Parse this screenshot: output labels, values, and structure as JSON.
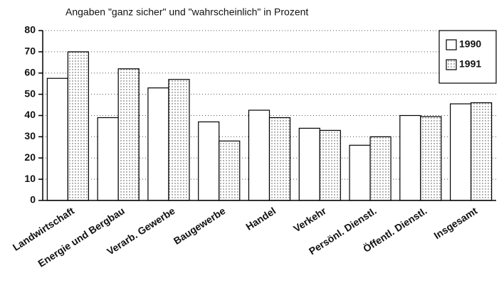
{
  "chart_data": {
    "type": "bar",
    "title": "Angaben \"ganz sicher\" und \"wahrscheinlich\" in Prozent",
    "categories": [
      "Landwirtschaft",
      "Energie und Bergbau",
      "Verarb. Gewerbe",
      "Baugewerbe",
      "Handel",
      "Verkehr",
      "Persönl. Dienstl.",
      "Öffentl. Dienstl.",
      "Insgesamt"
    ],
    "series": [
      {
        "name": "1990",
        "color": "#ffffff",
        "values": [
          57.5,
          39,
          53,
          37,
          42.5,
          34,
          26,
          40,
          45.5
        ]
      },
      {
        "name": "1991",
        "color": "#ffffff",
        "pattern": "dots",
        "values": [
          70,
          62,
          57,
          28,
          39,
          33,
          30,
          39.5,
          46
        ]
      }
    ],
    "ylim": [
      0,
      80
    ],
    "yticks": [
      0,
      10,
      20,
      30,
      40,
      50,
      60,
      70,
      80
    ],
    "grid": true,
    "legend": "top-right"
  }
}
